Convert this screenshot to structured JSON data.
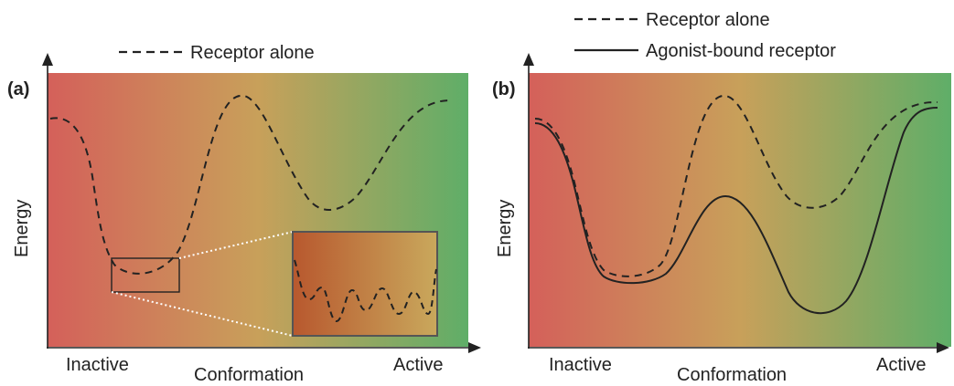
{
  "legend": {
    "receptor_alone": "Receptor alone",
    "agonist_bound": "Agonist-bound receptor"
  },
  "panel_a": {
    "label": "(a)",
    "y_axis_label": "Energy",
    "x_axis_label": "Conformation",
    "x_left_label": "Inactive",
    "x_right_label": "Active"
  },
  "panel_b": {
    "label": "(b)",
    "y_axis_label": "Energy",
    "x_axis_label": "Conformation",
    "x_left_label": "Inactive",
    "x_right_label": "Active"
  },
  "colors": {
    "gradient_start": "#d4605a",
    "gradient_mid": "#c8a05a",
    "gradient_end": "#5fae68",
    "inset_start": "#b8582e",
    "inset_end": "#c9a85c",
    "curve": "#222222"
  }
}
